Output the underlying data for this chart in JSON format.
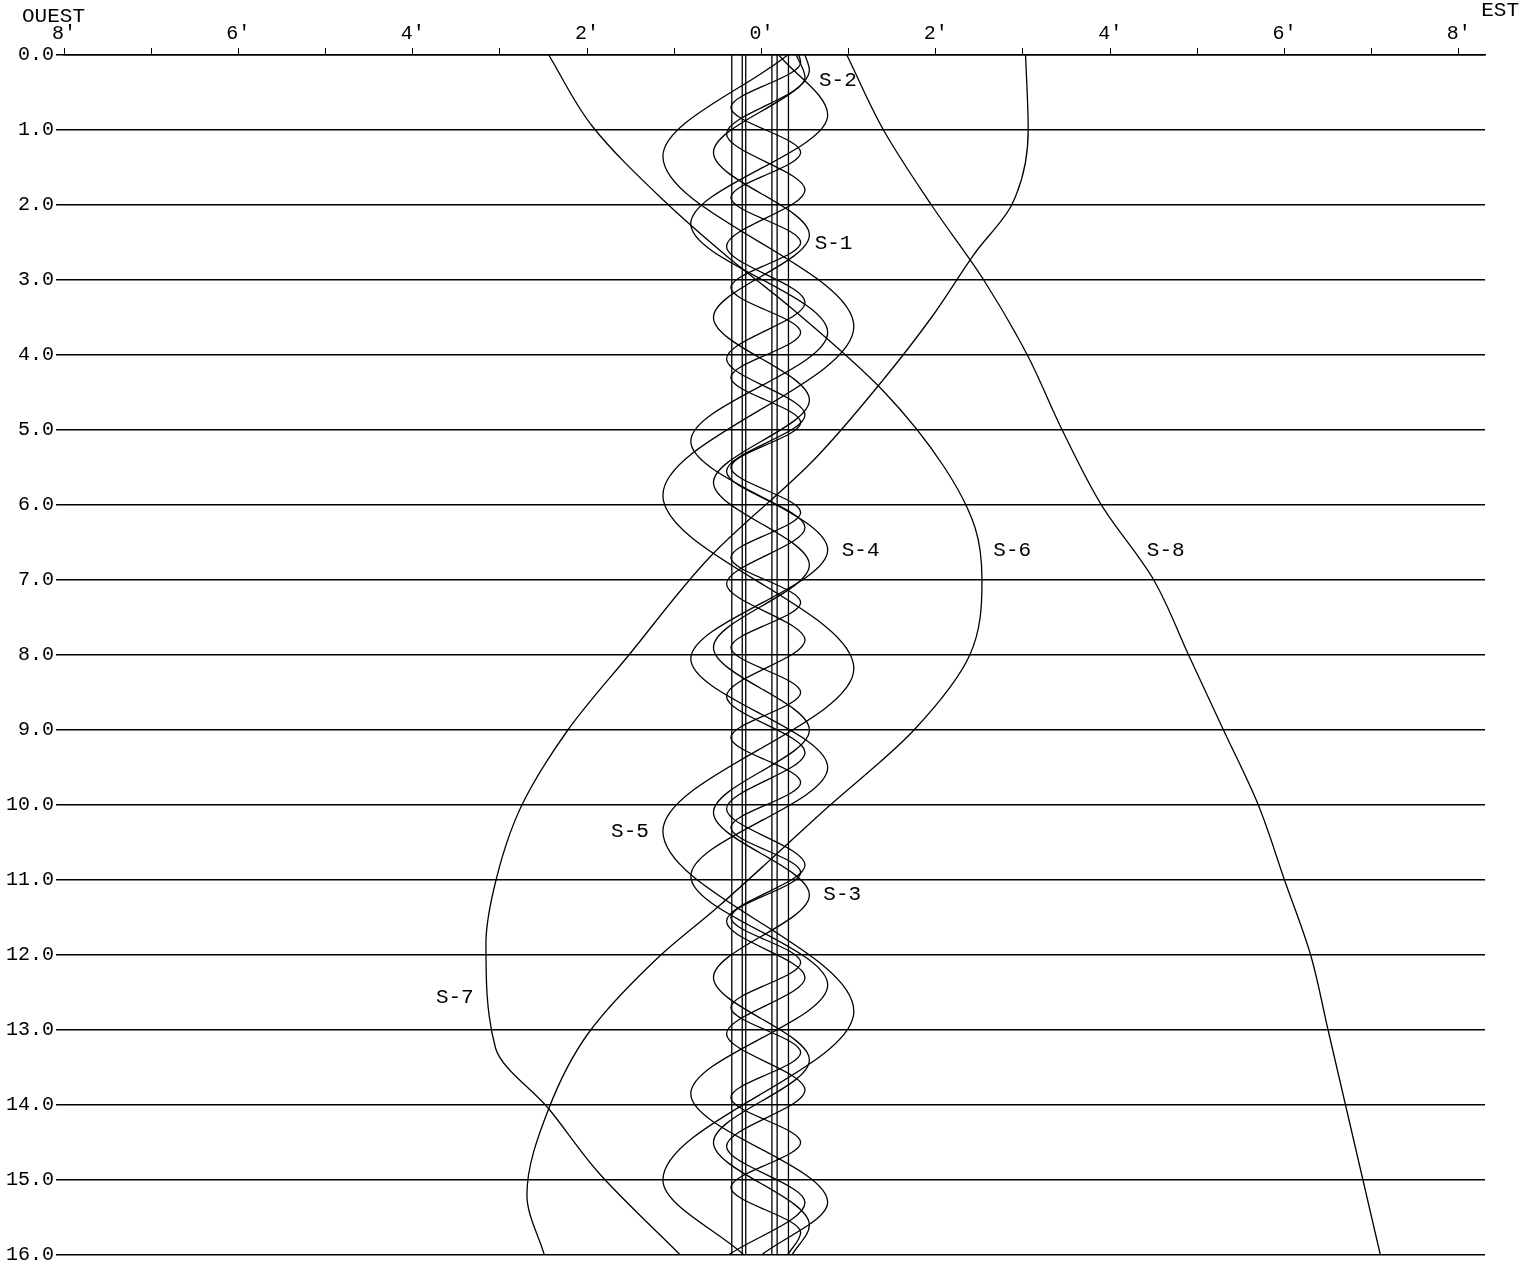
{
  "chart_data": {
    "type": "line",
    "marker": "none",
    "grid": "y",
    "xlim": [
      -8,
      8.3
    ],
    "ylim": [
      16,
      0
    ],
    "xticks": [
      {
        "value": -8,
        "label": "8'"
      },
      {
        "value": -7,
        "label": null
      },
      {
        "value": -6,
        "label": "6'"
      },
      {
        "value": -5,
        "label": null
      },
      {
        "value": -4,
        "label": "4'"
      },
      {
        "value": -3,
        "label": null
      },
      {
        "value": -2,
        "label": "2'"
      },
      {
        "value": -1,
        "label": null
      },
      {
        "value": 0,
        "label": "0'"
      },
      {
        "value": 1,
        "label": null
      },
      {
        "value": 2,
        "label": "2'"
      },
      {
        "value": 3,
        "label": null
      },
      {
        "value": 4,
        "label": "4'"
      },
      {
        "value": 5,
        "label": null
      },
      {
        "value": 6,
        "label": "6'"
      },
      {
        "value": 7,
        "label": null
      },
      {
        "value": 8,
        "label": "8'"
      }
    ],
    "yticks": [
      {
        "value": 0,
        "label": "0.0"
      },
      {
        "value": 1,
        "label": "1.0"
      },
      {
        "value": 2,
        "label": "2.0"
      },
      {
        "value": 3,
        "label": "3.0"
      },
      {
        "value": 4,
        "label": "4.0"
      },
      {
        "value": 5,
        "label": "5.0"
      },
      {
        "value": 6,
        "label": "6.0"
      },
      {
        "value": 7,
        "label": "7.0"
      },
      {
        "value": 8,
        "label": "8.0"
      },
      {
        "value": 9,
        "label": "9.0"
      },
      {
        "value": 10,
        "label": "10.0"
      },
      {
        "value": 11,
        "label": "11.0"
      },
      {
        "value": 12,
        "label": "12.0"
      },
      {
        "value": 13,
        "label": "13.0"
      },
      {
        "value": 14,
        "label": "14.0"
      },
      {
        "value": 15,
        "label": "15.0"
      },
      {
        "value": 16,
        "label": "16.0"
      }
    ],
    "series": [
      {
        "color": "#000000",
        "x": [
          0.98,
          1.4,
          1.95,
          2.55,
          3.05,
          3.45,
          3.9,
          4.5,
          4.9,
          5.3,
          5.7,
          6.0,
          6.3,
          6.5,
          6.7,
          6.9,
          7.1
        ],
        "values": [
          0,
          1,
          2,
          3,
          4,
          5,
          6,
          7,
          8,
          9,
          10,
          11,
          12,
          13,
          14,
          15,
          16
        ]
      },
      {
        "color": "#000000",
        "x": [
          3.03,
          3.06,
          2.87,
          2.45,
          1.95,
          1.39,
          0.6,
          -0.58,
          -1.52,
          -2.22,
          -2.76,
          -3.04,
          -3.16,
          -3.05,
          -2.44,
          -1.87,
          -0.93
        ],
        "values": [
          0,
          1,
          2,
          2.64,
          3.5,
          4.34,
          5.4,
          6.68,
          8.0,
          9.0,
          10.03,
          10.98,
          11.84,
          13.24,
          14.05,
          14.9,
          16
        ]
      },
      {
        "color": "#000000",
        "x": [
          -2.44,
          -1.94,
          -1.12,
          -0.41,
          0.36,
          1.39,
          2.1,
          2.45,
          2.53,
          2.39,
          1.75,
          0.76,
          -0.49,
          -1.2,
          -1.99,
          -2.44,
          -2.69,
          -2.49
        ],
        "values": [
          0,
          0.95,
          1.94,
          2.67,
          3.39,
          4.47,
          5.5,
          6.3,
          7.0,
          8.0,
          9.0,
          10.03,
          11.35,
          12.05,
          13.05,
          14.05,
          15.2,
          16
        ]
      },
      {
        "color": "#000000",
        "x": [
          0.3,
          -1.13,
          1.06,
          -1.13,
          1.06,
          -1.13,
          1.06,
          -1.13,
          -0.2
        ],
        "values": [
          0,
          1.35,
          3.62,
          5.87,
          8.18,
          10.35,
          12.75,
          15.0,
          16
        ]
      },
      {
        "color": "#000000",
        "x": [
          0.2,
          0.76,
          -0.81,
          0.76,
          -0.81,
          0.76,
          -0.81,
          0.76,
          -0.81,
          0.76,
          -0.81,
          0.76,
          0.0
        ],
        "values": [
          0,
          0.8,
          2.25,
          3.7,
          5.15,
          6.6,
          8.05,
          9.5,
          10.95,
          12.4,
          13.85,
          15.3,
          16
        ]
      },
      {
        "color": "#000000",
        "x": [
          0.5,
          0.55,
          -0.55,
          0.55,
          -0.55,
          0.55,
          -0.55,
          0.55,
          -0.55,
          0.55,
          -0.55,
          0.55,
          -0.55,
          0.55,
          -0.55,
          0.55,
          0.35
        ],
        "values": [
          0,
          0.2,
          1.3,
          2.4,
          3.5,
          4.6,
          5.7,
          6.8,
          7.9,
          9.0,
          10.1,
          11.2,
          12.3,
          13.4,
          14.5,
          15.6,
          16
        ]
      },
      {
        "color": "#000000",
        "x": [
          0.4,
          0.5,
          -0.4,
          0.5,
          -0.4,
          0.5,
          -0.4,
          0.5,
          -0.4,
          0.5,
          -0.4,
          0.5,
          -0.4,
          0.5,
          -0.4,
          0.5,
          -0.4,
          0.5,
          -0.4,
          0.5,
          -0.4,
          0.5,
          -0.38
        ],
        "values": [
          0,
          0.3,
          1.05,
          1.8,
          2.55,
          3.3,
          4.05,
          4.8,
          5.55,
          6.3,
          7.05,
          7.8,
          8.55,
          9.3,
          10.05,
          10.8,
          11.55,
          12.3,
          13.05,
          13.8,
          14.55,
          15.3,
          16
        ]
      },
      {
        "color": "#000000",
        "x": [
          0.43,
          0.45,
          -0.35,
          0.45,
          -0.35,
          0.45,
          -0.35,
          0.45,
          -0.35,
          0.45,
          -0.35,
          0.45,
          -0.35,
          0.45,
          -0.35,
          0.45,
          -0.35,
          0.45,
          -0.35,
          0.45,
          -0.35,
          0.45,
          -0.35,
          0.45,
          -0.35,
          0.45,
          -0.35,
          0.45,
          0.3
        ],
        "values": [
          0,
          0.1,
          0.7,
          1.3,
          1.9,
          2.5,
          3.1,
          3.7,
          4.3,
          4.9,
          5.5,
          6.1,
          6.7,
          7.3,
          7.9,
          8.5,
          9.1,
          9.7,
          10.3,
          10.9,
          11.5,
          12.1,
          12.7,
          13.3,
          13.9,
          14.5,
          15.1,
          15.7,
          16
        ]
      },
      {
        "color": "#000000",
        "x": [
          -0.34,
          -0.34
        ],
        "values": [
          0,
          16
        ]
      },
      {
        "color": "#000000",
        "x": [
          -0.22,
          -0.22
        ],
        "values": [
          0,
          16
        ]
      },
      {
        "color": "#000000",
        "x": [
          -0.18,
          -0.18
        ],
        "values": [
          0,
          16
        ]
      },
      {
        "color": "#000000",
        "x": [
          0.12,
          0.12
        ],
        "values": [
          0,
          16
        ]
      },
      {
        "color": "#000000",
        "x": [
          0.18,
          0.18
        ],
        "values": [
          0,
          16
        ]
      },
      {
        "color": "#000000",
        "x": [
          0.31,
          0.31
        ],
        "values": [
          0,
          16
        ]
      }
    ],
    "annotations": [
      "OUEST",
      "EST",
      {
        "text": "S-2",
        "x": 0.5,
        "y": 0.34
      },
      {
        "text": "S-1",
        "x": 0.45,
        "y": 2.51
      },
      {
        "text": "S-4",
        "x": 0.76,
        "y": 6.6
      },
      {
        "text": "S-6",
        "x": 2.5,
        "y": 6.6
      },
      {
        "text": "S-8",
        "x": 4.26,
        "y": 6.6
      },
      {
        "text": "S-5",
        "x": -1.13,
        "y": 10.35
      },
      {
        "text": "S-3",
        "x": 0.55,
        "y": 11.19
      },
      {
        "text": "S-7",
        "x": -3.14,
        "y": 12.57
      }
    ]
  }
}
